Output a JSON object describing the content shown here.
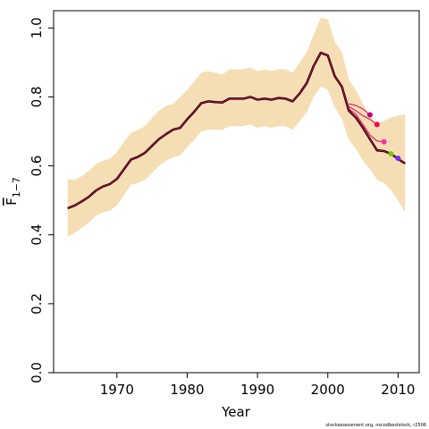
{
  "chart_data": {
    "type": "line",
    "title": "",
    "xlabel": "Year",
    "ylabel": "F̅₁₋₇",
    "ylabel_main": "F",
    "ylabel_sub": "1−7",
    "xlim": [
      1961,
      2013
    ],
    "ylim": [
      0,
      1.05
    ],
    "x_ticks": [
      1970,
      1980,
      1990,
      2000,
      2010
    ],
    "y_ticks": [
      0.0,
      0.2,
      0.4,
      0.6,
      0.8,
      1.0
    ],
    "x_tick_labels": [
      "1970",
      "1980",
      "1990",
      "2000",
      "2010"
    ],
    "y_tick_labels": [
      "0.0",
      "0.2",
      "0.4",
      "0.6",
      "0.8",
      "1.0"
    ],
    "grid": false,
    "legend": "none",
    "credit": "stockassessment.org, nscodbeststock, r2506",
    "colors": {
      "band": "#f5deb3",
      "main_line": "#000000",
      "retro_line": "#e8005a",
      "retro_point_colors": [
        "#b8007a",
        "#ff0040",
        "#ff2db0",
        "#77cc00",
        "#7a2dff"
      ]
    },
    "band": {
      "x": [
        1963,
        1964,
        1965,
        1966,
        1967,
        1968,
        1969,
        1970,
        1971,
        1972,
        1973,
        1974,
        1975,
        1976,
        1977,
        1978,
        1979,
        1980,
        1981,
        1982,
        1983,
        1984,
        1985,
        1986,
        1987,
        1988,
        1989,
        1990,
        1991,
        1992,
        1993,
        1994,
        1995,
        1996,
        1997,
        1998,
        1999,
        2000,
        2001,
        2002,
        2003,
        2004,
        2005,
        2006,
        2007,
        2008,
        2009,
        2010,
        2011
      ],
      "upper": [
        0.56,
        0.56,
        0.57,
        0.585,
        0.605,
        0.615,
        0.62,
        0.64,
        0.67,
        0.695,
        0.705,
        0.715,
        0.74,
        0.76,
        0.775,
        0.78,
        0.8,
        0.82,
        0.845,
        0.87,
        0.875,
        0.87,
        0.865,
        0.88,
        0.88,
        0.88,
        0.885,
        0.875,
        0.88,
        0.875,
        0.88,
        0.88,
        0.87,
        0.9,
        0.93,
        0.98,
        1.03,
        1.025,
        0.96,
        0.93,
        0.85,
        0.82,
        0.78,
        0.745,
        0.725,
        0.73,
        0.74,
        0.745,
        0.75
      ],
      "lower": [
        0.395,
        0.405,
        0.42,
        0.435,
        0.455,
        0.465,
        0.47,
        0.485,
        0.515,
        0.545,
        0.55,
        0.56,
        0.58,
        0.6,
        0.615,
        0.625,
        0.63,
        0.655,
        0.675,
        0.7,
        0.705,
        0.705,
        0.705,
        0.715,
        0.715,
        0.715,
        0.72,
        0.71,
        0.715,
        0.71,
        0.715,
        0.715,
        0.705,
        0.73,
        0.755,
        0.8,
        0.83,
        0.82,
        0.77,
        0.735,
        0.675,
        0.65,
        0.615,
        0.59,
        0.56,
        0.55,
        0.53,
        0.5,
        0.465
      ]
    },
    "series": [
      {
        "x": [
          1963,
          1964,
          1965,
          1966,
          1967,
          1968,
          1969,
          1970,
          1971,
          1972,
          1973,
          1974,
          1975,
          1976,
          1977,
          1978,
          1979,
          1980,
          1981,
          1982,
          1983,
          1984,
          1985,
          1986,
          1987,
          1988,
          1989,
          1990,
          1991,
          1992,
          1993,
          1994,
          1995,
          1996,
          1997,
          1998,
          1999,
          2000,
          2001,
          2002,
          2003,
          2004,
          2005,
          2006,
          2007,
          2008,
          2009,
          2010,
          2011
        ],
        "values": [
          0.477,
          0.485,
          0.497,
          0.51,
          0.528,
          0.54,
          0.547,
          0.562,
          0.59,
          0.618,
          0.626,
          0.638,
          0.658,
          0.678,
          0.692,
          0.705,
          0.71,
          0.735,
          0.757,
          0.782,
          0.787,
          0.785,
          0.784,
          0.795,
          0.795,
          0.795,
          0.8,
          0.792,
          0.795,
          0.792,
          0.797,
          0.795,
          0.787,
          0.81,
          0.84,
          0.89,
          0.928,
          0.92,
          0.86,
          0.83,
          0.76,
          0.74,
          0.71,
          0.678,
          0.645,
          0.643,
          0.635,
          0.62,
          0.607
        ]
      }
    ],
    "retro_series": [
      {
        "x": [
          2003,
          2004,
          2005,
          2006
        ],
        "values": [
          0.78,
          0.775,
          0.765,
          0.748
        ]
      },
      {
        "x": [
          2003,
          2004,
          2005,
          2006,
          2007
        ],
        "values": [
          0.772,
          0.76,
          0.745,
          0.735,
          0.72
        ]
      },
      {
        "x": [
          2003,
          2004,
          2005,
          2006,
          2007,
          2008
        ],
        "values": [
          0.765,
          0.75,
          0.72,
          0.69,
          0.672,
          0.67
        ]
      },
      {
        "x": [
          2003,
          2004,
          2005,
          2006,
          2007,
          2008,
          2009
        ],
        "values": [
          0.76,
          0.742,
          0.71,
          0.675,
          0.648,
          0.643,
          0.635
        ]
      },
      {
        "x": [
          2003,
          2004,
          2005,
          2006,
          2007,
          2008,
          2009,
          2010
        ],
        "values": [
          0.76,
          0.74,
          0.708,
          0.674,
          0.645,
          0.642,
          0.633,
          0.622
        ]
      }
    ],
    "retro_points": [
      {
        "x": 2006,
        "y": 0.748
      },
      {
        "x": 2007,
        "y": 0.72
      },
      {
        "x": 2008,
        "y": 0.67
      },
      {
        "x": 2009,
        "y": 0.635
      },
      {
        "x": 2010,
        "y": 0.622
      }
    ]
  }
}
